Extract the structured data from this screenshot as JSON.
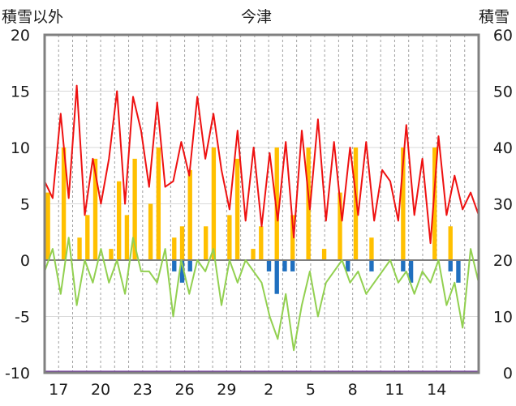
{
  "header": {
    "left_axis_title": "積雪以外",
    "title": "今津",
    "right_axis_title": "積雪"
  },
  "chart_data": {
    "type": "bar+line",
    "title": "今津",
    "y_left": {
      "label": "積雪以外",
      "range": [
        -10,
        20
      ],
      "ticks": [
        "-10",
        "-5",
        "0",
        "5",
        "10",
        "15",
        "20"
      ]
    },
    "y_right": {
      "label": "積雪",
      "range": [
        0,
        60
      ],
      "ticks": [
        "0",
        "10",
        "20",
        "30",
        "40",
        "50",
        "60"
      ]
    },
    "x": {
      "day_count": 31,
      "tick_labels": [
        "17",
        "20",
        "23",
        "26",
        "29",
        "2",
        "5",
        "8",
        "11",
        "14"
      ],
      "tick_day_index": [
        1,
        4,
        7,
        10,
        13,
        16,
        19,
        22,
        25,
        28
      ],
      "grid": "dashed vertical every day"
    },
    "colors": {
      "frame": "#808080",
      "zero_line": "#7f7f7f",
      "grid": "#a0a0a0",
      "snow_series_red": "#ee1111",
      "precip_bars": "#ffc000",
      "negative_bars": "#1f6fbf",
      "temp_series_green": "#92d050",
      "baseline_purple": "#7030a0"
    },
    "series": [
      {
        "axis": "right",
        "color": "#ee1111",
        "values": [
          34,
          31,
          46,
          31,
          51,
          28,
          38,
          30,
          38,
          50,
          30,
          49,
          43,
          33,
          48,
          33,
          34,
          41,
          35,
          49,
          38,
          46,
          36,
          29,
          43,
          27,
          40,
          26,
          39,
          27,
          41,
          24,
          43,
          29,
          45,
          27,
          41,
          27,
          40,
          28,
          41,
          27,
          36,
          34,
          27,
          44,
          28,
          38,
          23,
          42,
          28,
          35,
          29,
          32,
          28
        ]
      },
      {
        "axis": "left",
        "color": "#92d050",
        "values": [
          -1,
          1,
          -3,
          2,
          -4,
          0,
          -2,
          1,
          -2,
          0,
          -3,
          2,
          -1,
          -1,
          -2,
          1,
          -5,
          0,
          -3,
          0,
          -1,
          1,
          -4,
          0,
          -2,
          0,
          -1,
          -2,
          -5,
          -7,
          -3,
          -8,
          -4,
          -1,
          -5,
          -2,
          -1,
          0,
          -2,
          -1,
          -3,
          -2,
          -1,
          0,
          -2,
          -1,
          -3,
          -1,
          -2,
          0,
          -4,
          -2,
          -6,
          1,
          -2
        ]
      }
    ],
    "precip_bars": [
      6,
      0,
      10,
      0,
      2,
      4,
      9,
      0,
      1,
      7,
      4,
      9,
      0,
      5,
      10,
      0,
      2,
      3,
      8,
      0,
      3,
      10,
      0,
      4,
      9,
      0,
      1,
      3,
      0,
      10,
      0,
      4,
      0,
      10,
      0,
      1,
      0,
      6,
      0,
      10,
      0,
      2,
      0,
      0,
      0,
      10,
      0,
      0,
      0,
      10,
      0,
      3,
      0,
      0,
      0
    ],
    "negative_bars": [
      0,
      0,
      0,
      0,
      0,
      0,
      0,
      0,
      0,
      0,
      0,
      0,
      0,
      0,
      0,
      0,
      -1,
      -2,
      -1,
      0,
      0,
      0,
      0,
      0,
      0,
      0,
      0,
      0,
      -1,
      -3,
      -1,
      -1,
      0,
      0,
      0,
      0,
      0,
      0,
      -1,
      0,
      0,
      -1,
      0,
      0,
      0,
      -1,
      -2,
      0,
      0,
      0,
      0,
      -1,
      -2,
      0,
      0
    ]
  }
}
